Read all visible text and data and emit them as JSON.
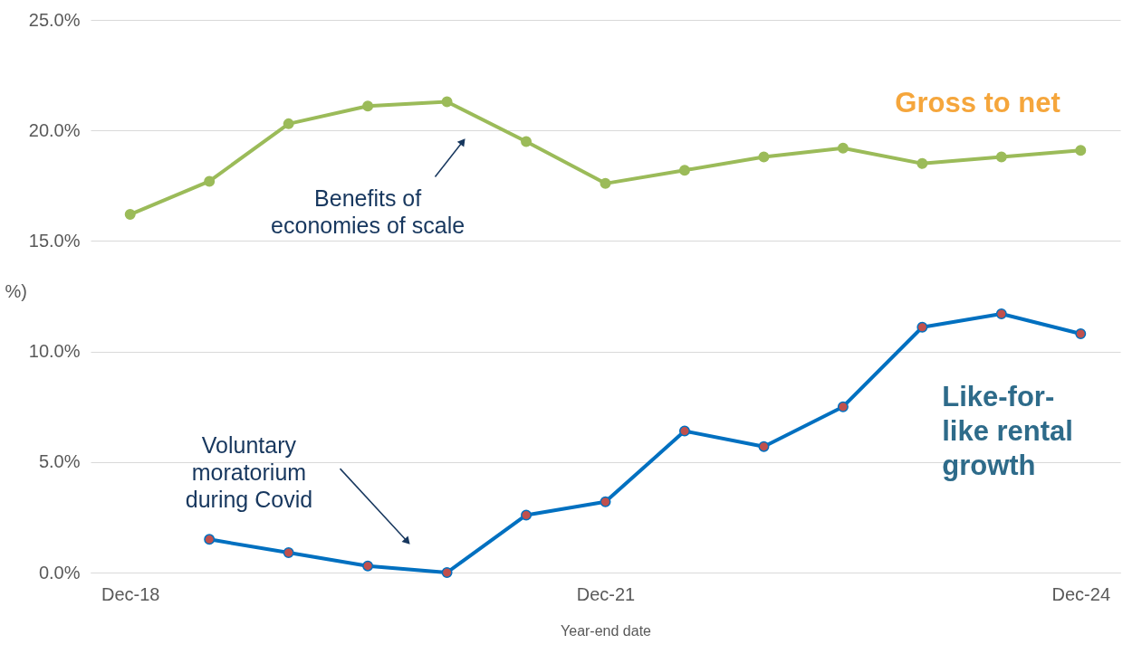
{
  "chart_data": {
    "type": "line",
    "xlabel": "Year-end date",
    "ylabel": "%)",
    "categories": [
      "Dec-18",
      null,
      null,
      null,
      null,
      null,
      "Dec-21",
      null,
      null,
      null,
      null,
      null,
      "Dec-24"
    ],
    "series": [
      {
        "name": "Gross to net",
        "color": "#9bbb59",
        "values": [
          16.2,
          17.7,
          20.3,
          21.1,
          21.3,
          19.5,
          17.6,
          18.2,
          18.8,
          19.2,
          18.5,
          18.8,
          19.1
        ]
      },
      {
        "name": "Like-for-like rental growth",
        "color": "#0070c0",
        "values": [
          null,
          1.5,
          0.9,
          0.3,
          0.0,
          2.6,
          3.2,
          6.4,
          5.7,
          7.5,
          11.1,
          11.7,
          10.8
        ]
      }
    ],
    "ylim": [
      0,
      25
    ],
    "yticks": [
      {
        "value": 0,
        "label": "0.0%"
      },
      {
        "value": 5,
        "label": "5.0%"
      },
      {
        "value": 10,
        "label": "10.0%"
      },
      {
        "value": 15,
        "label": "15.0%"
      },
      {
        "value": 20,
        "label": "20.0%"
      },
      {
        "value": 25,
        "label": "25.0%"
      }
    ],
    "annotations": [
      "Benefits of economies of scale",
      "Voluntary moratorium during Covid"
    ],
    "grid": "y",
    "legend": false,
    "marker": "circle",
    "line_style": "solid"
  }
}
